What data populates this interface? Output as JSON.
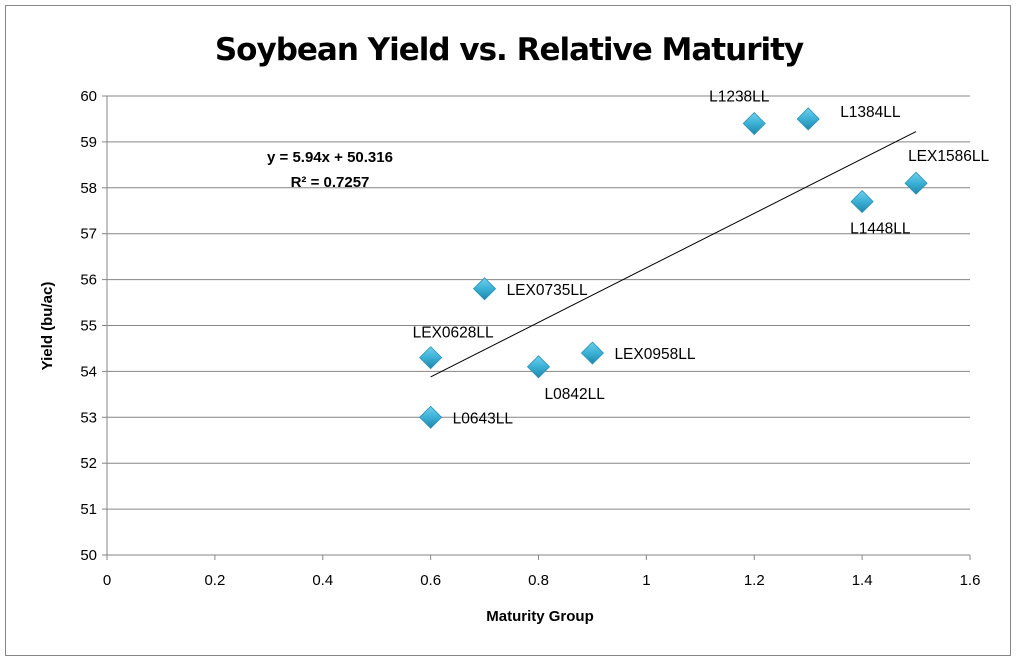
{
  "chart_data": {
    "type": "scatter",
    "title": "Soybean Yield vs. Relative Maturity",
    "xlabel": "Maturity Group",
    "ylabel": "Yield (bu/ac)",
    "xlim": [
      0,
      1.6
    ],
    "ylim": [
      50,
      60
    ],
    "xticks": [
      "0",
      "0.2",
      "0.4",
      "0.6",
      "0.8",
      "1",
      "1.2",
      "1.4",
      "1.6"
    ],
    "yticks": [
      "50",
      "51",
      "52",
      "53",
      "54",
      "55",
      "56",
      "57",
      "58",
      "59",
      "60"
    ],
    "grid": "horizontal major gridlines",
    "legend": "none",
    "marker": "diamond",
    "marker_color": "#3BB0D6",
    "points": [
      {
        "label": "L1238LL",
        "x": 1.2,
        "y": 59.4
      },
      {
        "label": "L1384LL",
        "x": 1.3,
        "y": 59.5
      },
      {
        "label": "L1448LL",
        "x": 1.4,
        "y": 57.7
      },
      {
        "label": "LEX1586LL",
        "x": 1.5,
        "y": 58.1
      },
      {
        "label": "LEX0735LL",
        "x": 0.7,
        "y": 55.8
      },
      {
        "label": "LEX0628LL",
        "x": 0.6,
        "y": 54.3
      },
      {
        "label": "L0842LL",
        "x": 0.8,
        "y": 54.1
      },
      {
        "label": "LEX0958LL",
        "x": 0.9,
        "y": 54.4
      },
      {
        "label": "L0643LL",
        "x": 0.6,
        "y": 53.0
      }
    ],
    "trendline": {
      "type": "linear",
      "slope": 5.94,
      "intercept": 50.316,
      "x_range": [
        0.6,
        1.5
      ],
      "equation": "y = 5.94x + 50.316",
      "r_squared": "R² = 0.7257"
    }
  }
}
